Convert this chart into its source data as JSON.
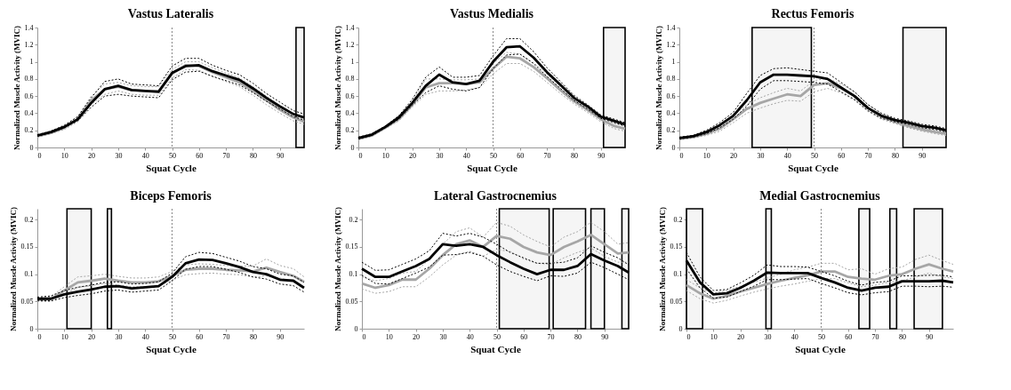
{
  "chart_data": [
    {
      "type": "line",
      "title": "Vastus Lateralis",
      "xlabel": "Squat Cycle",
      "ylabel": "Normalized Muscle Activity (MVIC)",
      "xlim": [
        0,
        99
      ],
      "xticks": [
        0,
        10,
        20,
        30,
        40,
        50,
        60,
        70,
        80,
        90
      ],
      "ylim": [
        0,
        1.4
      ],
      "yticks": [
        0,
        0.2,
        0.4,
        0.6,
        0.8,
        1,
        1.2,
        1.4
      ],
      "x": [
        0,
        5,
        10,
        15,
        20,
        25,
        30,
        35,
        40,
        45,
        50,
        55,
        60,
        65,
        70,
        75,
        80,
        85,
        90,
        95,
        99
      ],
      "series": [
        {
          "color": "#a6a6a6",
          "line_style": "solid",
          "values": [
            0.13,
            0.17,
            0.23,
            0.33,
            0.55,
            0.68,
            0.71,
            0.67,
            0.66,
            0.66,
            0.86,
            0.96,
            0.95,
            0.88,
            0.82,
            0.76,
            0.66,
            0.55,
            0.44,
            0.35,
            0.3
          ]
        },
        {
          "color": "#a6a6a6",
          "line_style": "dotted",
          "values": [
            0.14,
            0.18,
            0.25,
            0.36,
            0.6,
            0.74,
            0.76,
            0.72,
            0.71,
            0.71,
            0.91,
            1.0,
            1.0,
            0.93,
            0.87,
            0.81,
            0.71,
            0.6,
            0.48,
            0.39,
            0.33
          ]
        },
        {
          "color": "#a6a6a6",
          "line_style": "dotted",
          "values": [
            0.12,
            0.16,
            0.21,
            0.3,
            0.5,
            0.62,
            0.66,
            0.62,
            0.61,
            0.61,
            0.81,
            0.91,
            0.9,
            0.83,
            0.77,
            0.71,
            0.61,
            0.5,
            0.4,
            0.31,
            0.27
          ]
        },
        {
          "color": "#000000",
          "line_style": "solid",
          "values": [
            0.14,
            0.18,
            0.24,
            0.33,
            0.52,
            0.68,
            0.72,
            0.67,
            0.66,
            0.65,
            0.87,
            0.95,
            0.96,
            0.89,
            0.84,
            0.79,
            0.69,
            0.58,
            0.48,
            0.39,
            0.35
          ]
        },
        {
          "color": "#000000",
          "line_style": "dotted",
          "values": [
            0.15,
            0.19,
            0.26,
            0.36,
            0.58,
            0.77,
            0.8,
            0.74,
            0.73,
            0.72,
            0.95,
            1.04,
            1.04,
            0.96,
            0.9,
            0.85,
            0.75,
            0.63,
            0.53,
            0.43,
            0.39
          ]
        },
        {
          "color": "#000000",
          "line_style": "dotted",
          "values": [
            0.13,
            0.17,
            0.23,
            0.31,
            0.47,
            0.6,
            0.62,
            0.6,
            0.59,
            0.58,
            0.79,
            0.88,
            0.89,
            0.83,
            0.78,
            0.73,
            0.64,
            0.54,
            0.45,
            0.36,
            0.32
          ]
        }
      ],
      "ref_lines": [
        {
          "axis": "x",
          "value": 50,
          "line_style": "dotted"
        }
      ],
      "bands": [
        {
          "axis": "x",
          "from": 96,
          "to": 99
        }
      ]
    },
    {
      "type": "line",
      "title": "Vastus Medialis",
      "xlabel": "Squat Cycle",
      "ylabel": "Normalized Muscle Activity (MVIC)",
      "xlim": [
        0,
        99
      ],
      "xticks": [
        0,
        10,
        20,
        30,
        40,
        50,
        60,
        70,
        80,
        90
      ],
      "ylim": [
        0,
        1.4
      ],
      "yticks": [
        0,
        0.2,
        0.4,
        0.6,
        0.8,
        1,
        1.2,
        1.4
      ],
      "x": [
        0,
        5,
        10,
        15,
        20,
        25,
        30,
        35,
        40,
        45,
        50,
        55,
        60,
        65,
        70,
        75,
        80,
        85,
        90,
        95,
        99
      ],
      "series": [
        {
          "color": "#a6a6a6",
          "line_style": "solid",
          "values": [
            0.1,
            0.14,
            0.23,
            0.33,
            0.5,
            0.7,
            0.75,
            0.75,
            0.74,
            0.76,
            0.92,
            1.06,
            1.04,
            0.94,
            0.81,
            0.67,
            0.54,
            0.44,
            0.33,
            0.25,
            0.22
          ]
        },
        {
          "color": "#a6a6a6",
          "line_style": "dotted",
          "values": [
            0.11,
            0.15,
            0.24,
            0.35,
            0.53,
            0.8,
            0.8,
            0.79,
            0.79,
            0.8,
            0.98,
            1.11,
            1.09,
            0.99,
            0.86,
            0.71,
            0.57,
            0.47,
            0.36,
            0.28,
            0.25
          ]
        },
        {
          "color": "#a6a6a6",
          "line_style": "dotted",
          "values": [
            0.09,
            0.13,
            0.22,
            0.31,
            0.47,
            0.62,
            0.66,
            0.66,
            0.67,
            0.7,
            0.86,
            0.98,
            0.98,
            0.89,
            0.76,
            0.63,
            0.51,
            0.41,
            0.3,
            0.22,
            0.19
          ]
        },
        {
          "color": "#000000",
          "line_style": "solid",
          "values": [
            0.11,
            0.15,
            0.24,
            0.35,
            0.52,
            0.72,
            0.85,
            0.76,
            0.74,
            0.78,
            1.0,
            1.17,
            1.18,
            1.05,
            0.88,
            0.73,
            0.58,
            0.48,
            0.36,
            0.31,
            0.27
          ]
        },
        {
          "color": "#000000",
          "line_style": "dotted",
          "values": [
            0.12,
            0.16,
            0.25,
            0.37,
            0.56,
            0.82,
            0.94,
            0.82,
            0.82,
            0.84,
            1.07,
            1.27,
            1.27,
            1.12,
            0.93,
            0.77,
            0.61,
            0.5,
            0.38,
            0.33,
            0.29
          ]
        },
        {
          "color": "#000000",
          "line_style": "dotted",
          "values": [
            0.1,
            0.14,
            0.23,
            0.33,
            0.49,
            0.64,
            0.72,
            0.68,
            0.66,
            0.7,
            0.92,
            1.08,
            1.09,
            0.98,
            0.83,
            0.69,
            0.55,
            0.45,
            0.34,
            0.29,
            0.25
          ]
        }
      ],
      "ref_lines": [
        {
          "axis": "x",
          "value": 50,
          "line_style": "dotted"
        }
      ],
      "bands": [
        {
          "axis": "x",
          "from": 91,
          "to": 99
        }
      ]
    },
    {
      "type": "line",
      "title": "Rectus Femoris",
      "xlabel": "Squat Cycle",
      "ylabel": "Normalized Muscle Activity (MVIC)",
      "xlim": [
        0,
        99
      ],
      "xticks": [
        0,
        10,
        20,
        30,
        40,
        50,
        60,
        70,
        80,
        90
      ],
      "ylim": [
        0,
        1.4
      ],
      "yticks": [
        0,
        0.2,
        0.4,
        0.6,
        0.8,
        1,
        1.2,
        1.4
      ],
      "x": [
        0,
        5,
        10,
        15,
        20,
        25,
        30,
        35,
        40,
        45,
        50,
        55,
        60,
        65,
        70,
        75,
        80,
        85,
        90,
        95,
        99
      ],
      "series": [
        {
          "color": "#a6a6a6",
          "line_style": "solid",
          "values": [
            0.1,
            0.12,
            0.16,
            0.22,
            0.33,
            0.45,
            0.52,
            0.57,
            0.62,
            0.6,
            0.73,
            0.75,
            0.69,
            0.6,
            0.46,
            0.36,
            0.3,
            0.25,
            0.21,
            0.18,
            0.16
          ]
        },
        {
          "color": "#a6a6a6",
          "line_style": "dotted",
          "values": [
            0.11,
            0.13,
            0.18,
            0.25,
            0.37,
            0.5,
            0.58,
            0.64,
            0.69,
            0.66,
            0.78,
            0.81,
            0.74,
            0.65,
            0.5,
            0.39,
            0.32,
            0.27,
            0.23,
            0.2,
            0.18
          ]
        },
        {
          "color": "#a6a6a6",
          "line_style": "dotted",
          "values": [
            0.09,
            0.11,
            0.14,
            0.19,
            0.29,
            0.4,
            0.46,
            0.51,
            0.55,
            0.54,
            0.65,
            0.69,
            0.64,
            0.55,
            0.42,
            0.33,
            0.28,
            0.23,
            0.19,
            0.16,
            0.14
          ]
        },
        {
          "color": "#000000",
          "line_style": "solid",
          "values": [
            0.11,
            0.13,
            0.18,
            0.26,
            0.37,
            0.55,
            0.76,
            0.85,
            0.85,
            0.84,
            0.83,
            0.8,
            0.7,
            0.6,
            0.46,
            0.37,
            0.32,
            0.29,
            0.25,
            0.23,
            0.2
          ]
        },
        {
          "color": "#000000",
          "line_style": "dotted",
          "values": [
            0.12,
            0.14,
            0.2,
            0.29,
            0.41,
            0.63,
            0.84,
            0.92,
            0.93,
            0.91,
            0.89,
            0.87,
            0.76,
            0.65,
            0.5,
            0.4,
            0.34,
            0.31,
            0.27,
            0.25,
            0.22
          ]
        },
        {
          "color": "#000000",
          "line_style": "dotted",
          "values": [
            0.1,
            0.12,
            0.16,
            0.23,
            0.33,
            0.48,
            0.68,
            0.78,
            0.78,
            0.77,
            0.76,
            0.74,
            0.65,
            0.56,
            0.43,
            0.34,
            0.3,
            0.27,
            0.23,
            0.21,
            0.18
          ]
        }
      ],
      "ref_lines": [
        {
          "axis": "x",
          "value": 50,
          "line_style": "dotted"
        }
      ],
      "bands": [
        {
          "axis": "x",
          "from": 27,
          "to": 49
        },
        {
          "axis": "x",
          "from": 83,
          "to": 99
        }
      ]
    },
    {
      "type": "line",
      "title": "Biceps Femoris",
      "xlabel": "Squat Cycle",
      "ylabel": "Normalized Muscle Activity (MVIC)",
      "xlim": [
        0,
        99
      ],
      "xticks": [
        0,
        10,
        20,
        30,
        40,
        50,
        60,
        70,
        80,
        90
      ],
      "ylim": [
        0,
        0.22
      ],
      "yticks": [
        0,
        0.05,
        0.1,
        0.15,
        0.2
      ],
      "x": [
        0,
        5,
        10,
        15,
        20,
        25,
        30,
        35,
        40,
        45,
        50,
        55,
        60,
        65,
        70,
        75,
        80,
        85,
        90,
        95,
        99
      ],
      "series": [
        {
          "color": "#a6a6a6",
          "line_style": "solid",
          "values": [
            0.053,
            0.054,
            0.07,
            0.085,
            0.088,
            0.092,
            0.088,
            0.085,
            0.085,
            0.087,
            0.097,
            0.108,
            0.11,
            0.11,
            0.108,
            0.107,
            0.105,
            0.112,
            0.104,
            0.097,
            0.086
          ]
        },
        {
          "color": "#a6a6a6",
          "line_style": "dotted",
          "values": [
            0.056,
            0.058,
            0.077,
            0.095,
            0.097,
            0.1,
            0.096,
            0.093,
            0.093,
            0.095,
            0.105,
            0.117,
            0.119,
            0.118,
            0.116,
            0.115,
            0.115,
            0.128,
            0.116,
            0.11,
            0.095
          ]
        },
        {
          "color": "#a6a6a6",
          "line_style": "dotted",
          "values": [
            0.05,
            0.05,
            0.063,
            0.076,
            0.079,
            0.083,
            0.08,
            0.077,
            0.077,
            0.079,
            0.089,
            0.099,
            0.101,
            0.102,
            0.1,
            0.099,
            0.095,
            0.097,
            0.093,
            0.086,
            0.077
          ]
        },
        {
          "color": "#000000",
          "line_style": "solid",
          "values": [
            0.055,
            0.055,
            0.063,
            0.068,
            0.072,
            0.077,
            0.078,
            0.074,
            0.076,
            0.078,
            0.095,
            0.12,
            0.127,
            0.126,
            0.12,
            0.113,
            0.104,
            0.1,
            0.09,
            0.088,
            0.075
          ]
        },
        {
          "color": "#000000",
          "line_style": "dotted",
          "values": [
            0.058,
            0.06,
            0.07,
            0.076,
            0.08,
            0.085,
            0.086,
            0.082,
            0.083,
            0.086,
            0.102,
            0.132,
            0.14,
            0.138,
            0.131,
            0.124,
            0.114,
            0.11,
            0.1,
            0.097,
            0.085
          ]
        },
        {
          "color": "#000000",
          "line_style": "dotted",
          "values": [
            0.052,
            0.051,
            0.057,
            0.061,
            0.064,
            0.069,
            0.071,
            0.067,
            0.069,
            0.071,
            0.088,
            0.109,
            0.114,
            0.114,
            0.109,
            0.103,
            0.095,
            0.091,
            0.082,
            0.079,
            0.067
          ]
        }
      ],
      "ref_lines": [
        {
          "axis": "x",
          "value": 50,
          "line_style": "dotted"
        }
      ],
      "bands": [
        {
          "axis": "x",
          "from": 11,
          "to": 20
        },
        {
          "axis": "x",
          "from": 26,
          "to": 27.5
        }
      ]
    },
    {
      "type": "line",
      "title": "Lateral Gastrocnemius",
      "xlabel": "Squat Cycle",
      "ylabel": "Normalized Muscle Activity (MVIC)",
      "xlim": [
        0,
        99
      ],
      "xticks": [
        0,
        10,
        20,
        30,
        40,
        50,
        60,
        70,
        80,
        90
      ],
      "ylim": [
        0,
        0.22
      ],
      "yticks": [
        0,
        0.05,
        0.1,
        0.15,
        0.2
      ],
      "x": [
        0,
        5,
        10,
        15,
        20,
        25,
        30,
        35,
        40,
        45,
        50,
        55,
        60,
        65,
        70,
        75,
        80,
        85,
        90,
        95,
        99
      ],
      "series": [
        {
          "color": "#a6a6a6",
          "line_style": "solid",
          "values": [
            0.083,
            0.075,
            0.08,
            0.09,
            0.09,
            0.11,
            0.135,
            0.155,
            0.162,
            0.15,
            0.17,
            0.165,
            0.15,
            0.14,
            0.135,
            0.15,
            0.16,
            0.172,
            0.155,
            0.138,
            0.14
          ]
        },
        {
          "color": "#a6a6a6",
          "line_style": "dotted",
          "values": [
            0.095,
            0.088,
            0.092,
            0.102,
            0.105,
            0.127,
            0.155,
            0.178,
            0.185,
            0.168,
            0.195,
            0.188,
            0.172,
            0.16,
            0.15,
            0.168,
            0.178,
            0.195,
            0.178,
            0.155,
            0.158
          ]
        },
        {
          "color": "#a6a6a6",
          "line_style": "dotted",
          "values": [
            0.073,
            0.065,
            0.068,
            0.077,
            0.077,
            0.095,
            0.117,
            0.135,
            0.142,
            0.133,
            0.145,
            0.142,
            0.128,
            0.12,
            0.118,
            0.13,
            0.14,
            0.148,
            0.133,
            0.122,
            0.122
          ]
        },
        {
          "color": "#000000",
          "line_style": "solid",
          "values": [
            0.11,
            0.095,
            0.095,
            0.105,
            0.115,
            0.128,
            0.155,
            0.152,
            0.155,
            0.15,
            0.135,
            0.122,
            0.11,
            0.1,
            0.108,
            0.108,
            0.115,
            0.137,
            0.125,
            0.115,
            0.103
          ]
        },
        {
          "color": "#000000",
          "line_style": "dotted",
          "values": [
            0.122,
            0.107,
            0.108,
            0.118,
            0.128,
            0.143,
            0.175,
            0.17,
            0.175,
            0.168,
            0.155,
            0.14,
            0.13,
            0.12,
            0.12,
            0.122,
            0.13,
            0.152,
            0.14,
            0.13,
            0.117
          ]
        },
        {
          "color": "#000000",
          "line_style": "dotted",
          "values": [
            0.098,
            0.083,
            0.082,
            0.092,
            0.102,
            0.113,
            0.135,
            0.136,
            0.14,
            0.133,
            0.117,
            0.105,
            0.096,
            0.088,
            0.097,
            0.096,
            0.102,
            0.122,
            0.112,
            0.1,
            0.09
          ]
        }
      ],
      "ref_lines": [
        {
          "axis": "x",
          "value": 50,
          "line_style": "dotted"
        }
      ],
      "bands": [
        {
          "axis": "x",
          "from": 51,
          "to": 69.5
        },
        {
          "axis": "x",
          "from": 71,
          "to": 83
        },
        {
          "axis": "x",
          "from": 85,
          "to": 90
        },
        {
          "axis": "x",
          "from": 96.5,
          "to": 99
        }
      ]
    },
    {
      "type": "line",
      "title": "Medial Gastrocnemius",
      "xlabel": "Squat Cycle",
      "ylabel": "Normalized Muscle Activity (MVIC)",
      "xlim": [
        0,
        99
      ],
      "xticks": [
        0,
        10,
        20,
        30,
        40,
        50,
        60,
        70,
        80,
        90
      ],
      "ylim": [
        0,
        0.22
      ],
      "yticks": [
        0,
        0.05,
        0.1,
        0.15,
        0.2
      ],
      "x": [
        0,
        5,
        10,
        15,
        20,
        25,
        30,
        35,
        40,
        45,
        50,
        55,
        60,
        65,
        70,
        75,
        80,
        85,
        90,
        95,
        99
      ],
      "series": [
        {
          "color": "#a6a6a6",
          "line_style": "solid",
          "values": [
            0.08,
            0.065,
            0.055,
            0.06,
            0.068,
            0.075,
            0.082,
            0.088,
            0.093,
            0.098,
            0.105,
            0.105,
            0.095,
            0.092,
            0.09,
            0.097,
            0.1,
            0.11,
            0.118,
            0.11,
            0.105
          ]
        },
        {
          "color": "#a6a6a6",
          "line_style": "dotted",
          "values": [
            0.09,
            0.075,
            0.065,
            0.07,
            0.078,
            0.085,
            0.093,
            0.1,
            0.108,
            0.113,
            0.12,
            0.12,
            0.108,
            0.11,
            0.1,
            0.11,
            0.113,
            0.127,
            0.135,
            0.125,
            0.118
          ]
        },
        {
          "color": "#a6a6a6",
          "line_style": "dotted",
          "values": [
            0.07,
            0.055,
            0.047,
            0.052,
            0.06,
            0.067,
            0.073,
            0.078,
            0.082,
            0.087,
            0.092,
            0.092,
            0.084,
            0.077,
            0.08,
            0.085,
            0.088,
            0.095,
            0.102,
            0.095,
            0.092
          ]
        },
        {
          "color": "#000000",
          "line_style": "solid",
          "values": [
            0.125,
            0.085,
            0.063,
            0.065,
            0.075,
            0.088,
            0.103,
            0.102,
            0.102,
            0.102,
            0.093,
            0.085,
            0.075,
            0.07,
            0.075,
            0.077,
            0.087,
            0.087,
            0.087,
            0.088,
            0.085
          ]
        },
        {
          "color": "#000000",
          "line_style": "dotted",
          "values": [
            0.14,
            0.095,
            0.07,
            0.072,
            0.084,
            0.098,
            0.117,
            0.114,
            0.114,
            0.113,
            0.105,
            0.097,
            0.087,
            0.08,
            0.085,
            0.087,
            0.097,
            0.097,
            0.098,
            0.098,
            0.095
          ]
        },
        {
          "color": "#000000",
          "line_style": "dotted",
          "values": [
            0.11,
            0.075,
            0.056,
            0.058,
            0.068,
            0.078,
            0.09,
            0.09,
            0.091,
            0.092,
            0.083,
            0.075,
            0.066,
            0.062,
            0.066,
            0.068,
            0.078,
            0.078,
            0.077,
            0.078,
            0.076
          ]
        }
      ],
      "ref_lines": [
        {
          "axis": "x",
          "value": 50,
          "line_style": "dotted"
        }
      ],
      "bands": [
        {
          "axis": "x",
          "from": 0,
          "to": 6
        },
        {
          "axis": "x",
          "from": 29.5,
          "to": 31.5
        },
        {
          "axis": "x",
          "from": 64,
          "to": 68
        },
        {
          "axis": "x",
          "from": 75.5,
          "to": 78
        },
        {
          "axis": "x",
          "from": 84.5,
          "to": 95
        }
      ]
    }
  ]
}
